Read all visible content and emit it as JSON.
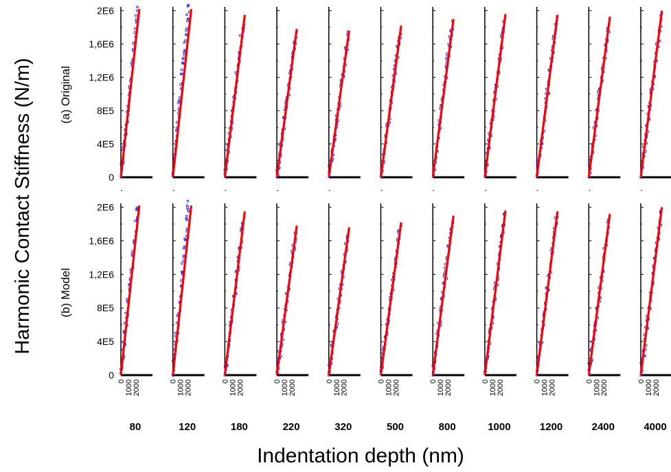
{
  "chart_data": {
    "type": "scatter",
    "ylabel": "Harmonic Contact Stiffness (N/m)",
    "xlabel": "Indentation depth (nm)",
    "rows": [
      {
        "label": "(a) Original"
      },
      {
        "label": "(b) Model"
      }
    ],
    "yticks": [
      "0",
      "4E5",
      "8E5",
      "1,2E6",
      "1,6E6",
      "2E6"
    ],
    "ytick_values": [
      0,
      400000,
      800000,
      1200000,
      1600000,
      2000000
    ],
    "ylim": [
      0,
      2200000
    ],
    "xticks": [
      "0",
      "1000",
      "2000"
    ],
    "xtick_values": [
      0,
      1000,
      2000
    ],
    "xlim": [
      0,
      4200
    ],
    "conditions": [
      "80",
      "120",
      "180",
      "220",
      "320",
      "500",
      "800",
      "1000",
      "1200",
      "2400",
      "4000"
    ],
    "series_colors": {
      "data": "#1a1aff",
      "fit": "#ff0000"
    },
    "panels": [
      {
        "condition": "80",
        "fit_x": [
          0,
          2450
        ],
        "fit_y": [
          0,
          2020000
        ],
        "data_x": [
          0,
          2250
        ],
        "data_y": [
          0,
          2000000
        ]
      },
      {
        "condition": "120",
        "fit_x": [
          0,
          2450
        ],
        "fit_y": [
          0,
          2020000
        ],
        "data_x": [
          0,
          2100
        ],
        "data_y": [
          0,
          2080000
        ]
      },
      {
        "condition": "180",
        "fit_x": [
          0,
          2650
        ],
        "fit_y": [
          0,
          1950000
        ],
        "data_x": [
          0,
          2450
        ],
        "data_y": [
          0,
          1850000
        ]
      },
      {
        "condition": "220",
        "fit_x": [
          0,
          2650
        ],
        "fit_y": [
          0,
          1780000
        ],
        "data_x": [
          0,
          2500
        ],
        "data_y": [
          0,
          1700000
        ]
      },
      {
        "condition": "320",
        "fit_x": [
          0,
          2700
        ],
        "fit_y": [
          0,
          1760000
        ],
        "data_x": [
          0,
          2600
        ],
        "data_y": [
          0,
          1700000
        ]
      },
      {
        "condition": "500",
        "fit_x": [
          0,
          2700
        ],
        "fit_y": [
          0,
          1820000
        ],
        "data_x": [
          0,
          2550
        ],
        "data_y": [
          0,
          1750000
        ]
      },
      {
        "condition": "800",
        "fit_x": [
          0,
          2750
        ],
        "fit_y": [
          0,
          1900000
        ],
        "data_x": [
          0,
          2600
        ],
        "data_y": [
          0,
          1850000
        ]
      },
      {
        "condition": "1000",
        "fit_x": [
          0,
          2750
        ],
        "fit_y": [
          0,
          1960000
        ],
        "data_x": [
          0,
          2650
        ],
        "data_y": [
          0,
          1900000
        ]
      },
      {
        "condition": "1200",
        "fit_x": [
          0,
          2750
        ],
        "fit_y": [
          0,
          1950000
        ],
        "data_x": [
          0,
          2650
        ],
        "data_y": [
          0,
          1900000
        ]
      },
      {
        "condition": "2400",
        "fit_x": [
          0,
          2800
        ],
        "fit_y": [
          0,
          1920000
        ],
        "data_x": [
          0,
          2700
        ],
        "data_y": [
          0,
          1870000
        ]
      },
      {
        "condition": "4000",
        "fit_x": [
          0,
          2800
        ],
        "fit_y": [
          0,
          2000000
        ],
        "data_x": [
          0,
          2750
        ],
        "data_y": [
          0,
          1950000
        ]
      }
    ]
  }
}
